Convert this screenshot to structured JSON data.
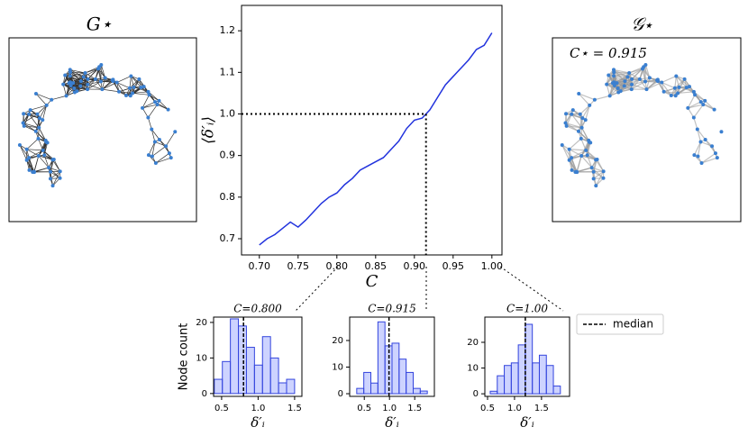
{
  "panels": [
    {
      "title": "G⋆"
    },
    {
      "title": "𝒢⋆",
      "annotation": "C⋆ = 0.915"
    }
  ],
  "legend": {
    "label": "median"
  },
  "chart_data": [
    {
      "type": "line",
      "xlabel": "C",
      "ylabel": "⟨δ′ᵢ⟩",
      "color": "#2233dd",
      "x": [
        0.7,
        0.71,
        0.72,
        0.73,
        0.74,
        0.75,
        0.76,
        0.77,
        0.78,
        0.79,
        0.8,
        0.81,
        0.82,
        0.83,
        0.84,
        0.85,
        0.86,
        0.87,
        0.88,
        0.89,
        0.9,
        0.91,
        0.92,
        0.93,
        0.94,
        0.95,
        0.96,
        0.97,
        0.98,
        0.99,
        1.0
      ],
      "values": [
        0.685,
        0.7,
        0.71,
        0.725,
        0.74,
        0.728,
        0.745,
        0.765,
        0.785,
        0.8,
        0.81,
        0.83,
        0.845,
        0.865,
        0.875,
        0.885,
        0.895,
        0.915,
        0.935,
        0.965,
        0.985,
        0.99,
        1.01,
        1.04,
        1.07,
        1.09,
        1.11,
        1.13,
        1.155,
        1.165,
        1.195
      ],
      "reference": {
        "x": 0.915,
        "y": 1.0
      },
      "xlim": [
        0.677,
        1.013
      ],
      "ylim": [
        0.661,
        1.261
      ],
      "xticks": [
        {
          "value": 0.7,
          "label": "0.70"
        },
        0.75,
        {
          "value": 0.8,
          "label": "0.80"
        },
        0.85,
        {
          "value": 0.9,
          "label": "0.90"
        },
        0.95,
        {
          "value": 1.0,
          "label": "1.00"
        }
      ],
      "yticks": [
        0.7,
        0.8,
        0.9,
        {
          "value": 1.0,
          "label": "1.0"
        },
        1.1,
        1.2
      ]
    },
    {
      "type": "histogram",
      "title": "C=0.800",
      "ylabel": "Node count",
      "xlabel": "δ′ᵢ",
      "color": "#3344dd",
      "bins": [
        0.4,
        0.51,
        0.62,
        0.73,
        0.84,
        0.95,
        1.06,
        1.17,
        1.28,
        1.39,
        1.5
      ],
      "values": [
        4,
        9,
        21,
        19,
        13,
        8,
        16,
        10,
        3,
        4
      ],
      "median": 0.8,
      "xlim": [
        0.39,
        1.6
      ],
      "ylim": [
        -0.8,
        21.5
      ],
      "xticks": [
        0.5,
        {
          "value": 1.0,
          "label": "1.0"
        },
        1.5
      ],
      "yticks": [
        0,
        10,
        20
      ]
    },
    {
      "type": "histogram",
      "title": "C=0.915",
      "xlabel": "δ′ᵢ",
      "color": "#3344dd",
      "bins": [
        0.35,
        0.49,
        0.63,
        0.77,
        0.91,
        1.05,
        1.19,
        1.33,
        1.47,
        1.61,
        1.75
      ],
      "values": [
        2,
        8,
        4,
        27,
        18,
        19,
        13,
        8,
        2,
        1
      ],
      "median": 0.99,
      "xlim": [
        0.21,
        1.89
      ],
      "ylim": [
        -1.0,
        28.8
      ],
      "xticks": [
        0.5,
        {
          "value": 1.0,
          "label": "1.0"
        },
        1.5
      ],
      "yticks": [
        0,
        10,
        20
      ]
    },
    {
      "type": "histogram",
      "title": "C=1.00",
      "xlabel": "δ′ᵢ",
      "color": "#3344dd",
      "bins": [
        0.55,
        0.68,
        0.81,
        0.94,
        1.07,
        1.2,
        1.33,
        1.46,
        1.59,
        1.72,
        1.85
      ],
      "values": [
        1,
        7,
        11,
        12,
        19,
        27,
        12,
        15,
        11,
        3
      ],
      "median": 1.2,
      "xlim": [
        0.45,
        2.02
      ],
      "ylim": [
        -1.0,
        29.8
      ],
      "xticks": [
        0.5,
        {
          "value": 1.0,
          "label": "1.0"
        },
        1.5
      ],
      "yticks": [
        0,
        10,
        20
      ]
    }
  ]
}
